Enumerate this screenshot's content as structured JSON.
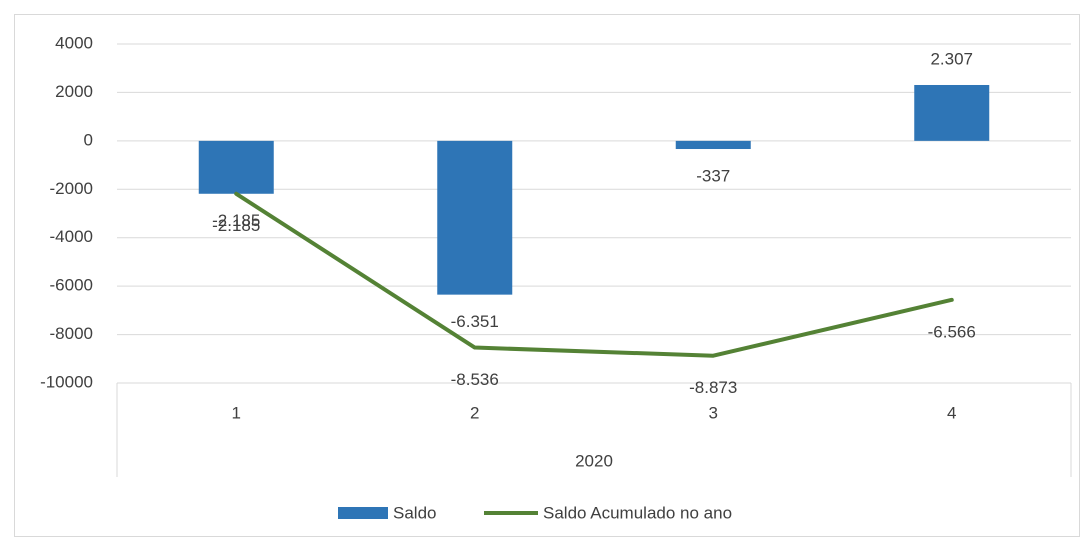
{
  "chart_data": {
    "type": "combo",
    "categories": [
      "1",
      "2",
      "3",
      "4"
    ],
    "group_label": "2020",
    "series": [
      {
        "name": "Saldo",
        "type": "bar",
        "color": "#2e75b6",
        "values": [
          -2185,
          -6351,
          -337,
          2307
        ],
        "value_labels": [
          "-2.185",
          "-6.351",
          "-337",
          "2.307"
        ]
      },
      {
        "name": "Saldo Acumulado no ano",
        "type": "line",
        "color": "#548235",
        "values": [
          -2185,
          -8536,
          -8873,
          -6566
        ],
        "value_labels": [
          "-2.185",
          "-8.536",
          "-8.873",
          "-6.566"
        ]
      }
    ],
    "ylim": [
      -10000,
      4000
    ],
    "yticks": [
      -10000,
      -8000,
      -6000,
      -4000,
      -2000,
      0,
      2000,
      4000
    ],
    "grid": true,
    "legend": "bottom"
  }
}
